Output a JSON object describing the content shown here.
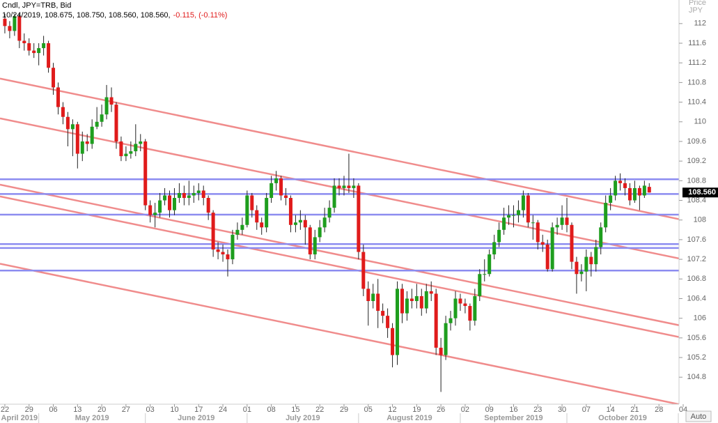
{
  "chart_data": {
    "type": "candlestick",
    "header": "Cndl, JPY=TRB, Bid",
    "info_line": "10/24/2019, 108.675, 108.750, 108.560, 108.560,",
    "change_line": "-0.115, (-0.11%)",
    "y_axis_label": "Price",
    "y_axis_unit": "JPY",
    "auto_button": "Auto",
    "up_color": "#1e9e1e",
    "down_color": "#e01b1b",
    "hline_color": "#8c8cf0",
    "trend_color": "#f08c8c",
    "x": [
      "2019-04-22",
      "2019-04-23",
      "2019-04-24",
      "2019-04-25",
      "2019-04-26",
      "2019-04-29",
      "2019-04-30",
      "2019-05-01",
      "2019-05-02",
      "2019-05-03",
      "2019-05-06",
      "2019-05-07",
      "2019-05-08",
      "2019-05-09",
      "2019-05-10",
      "2019-05-13",
      "2019-05-14",
      "2019-05-15",
      "2019-05-16",
      "2019-05-17",
      "2019-05-20",
      "2019-05-21",
      "2019-05-22",
      "2019-05-23",
      "2019-05-24",
      "2019-05-27",
      "2019-05-28",
      "2019-05-29",
      "2019-05-30",
      "2019-05-31",
      "2019-06-03",
      "2019-06-04",
      "2019-06-05",
      "2019-06-06",
      "2019-06-07",
      "2019-06-10",
      "2019-06-11",
      "2019-06-12",
      "2019-06-13",
      "2019-06-14",
      "2019-06-17",
      "2019-06-18",
      "2019-06-19",
      "2019-06-20",
      "2019-06-21",
      "2019-06-24",
      "2019-06-25",
      "2019-06-26",
      "2019-06-27",
      "2019-06-28",
      "2019-07-01",
      "2019-07-02",
      "2019-07-03",
      "2019-07-04",
      "2019-07-05",
      "2019-07-08",
      "2019-07-09",
      "2019-07-10",
      "2019-07-11",
      "2019-07-12",
      "2019-07-15",
      "2019-07-16",
      "2019-07-17",
      "2019-07-18",
      "2019-07-19",
      "2019-07-22",
      "2019-07-23",
      "2019-07-24",
      "2019-07-25",
      "2019-07-26",
      "2019-07-29",
      "2019-07-30",
      "2019-07-31",
      "2019-08-01",
      "2019-08-02",
      "2019-08-05",
      "2019-08-06",
      "2019-08-07",
      "2019-08-08",
      "2019-08-09",
      "2019-08-12",
      "2019-08-13",
      "2019-08-14",
      "2019-08-15",
      "2019-08-16",
      "2019-08-19",
      "2019-08-20",
      "2019-08-21",
      "2019-08-22",
      "2019-08-23",
      "2019-08-26",
      "2019-08-27",
      "2019-08-28",
      "2019-08-29",
      "2019-08-30",
      "2019-09-02",
      "2019-09-03",
      "2019-09-04",
      "2019-09-05",
      "2019-09-06",
      "2019-09-09",
      "2019-09-10",
      "2019-09-11",
      "2019-09-12",
      "2019-09-13",
      "2019-09-16",
      "2019-09-17",
      "2019-09-18",
      "2019-09-19",
      "2019-09-20",
      "2019-09-23",
      "2019-09-24",
      "2019-09-25",
      "2019-09-26",
      "2019-09-27",
      "2019-09-30",
      "2019-10-01",
      "2019-10-02",
      "2019-10-03",
      "2019-10-04",
      "2019-10-07",
      "2019-10-08",
      "2019-10-09",
      "2019-10-10",
      "2019-10-11",
      "2019-10-14",
      "2019-10-15",
      "2019-10-16",
      "2019-10-17",
      "2019-10-18",
      "2019-10-21",
      "2019-10-22",
      "2019-10-23",
      "2019-10-24"
    ],
    "open": [
      112.1,
      111.95,
      111.85,
      112.15,
      111.65,
      111.6,
      111.45,
      111.4,
      111.5,
      111.6,
      111.1,
      110.7,
      110.3,
      110.1,
      109.85,
      109.95,
      109.35,
      109.6,
      109.55,
      109.9,
      110.0,
      110.15,
      110.5,
      110.35,
      109.6,
      109.3,
      109.35,
      109.4,
      109.55,
      109.6,
      108.3,
      108.1,
      108.15,
      108.4,
      108.5,
      108.2,
      108.45,
      108.55,
      108.45,
      108.5,
      108.55,
      108.6,
      108.45,
      108.15,
      107.4,
      107.35,
      107.3,
      107.2,
      107.7,
      107.8,
      107.9,
      108.5,
      108.2,
      107.95,
      107.85,
      108.45,
      108.75,
      108.85,
      108.5,
      108.45,
      107.9,
      107.95,
      108.0,
      107.85,
      107.3,
      107.65,
      107.85,
      108.05,
      108.25,
      108.7,
      108.65,
      108.7,
      108.65,
      108.7,
      107.35,
      106.6,
      106.35,
      106.5,
      106.15,
      106.05,
      105.8,
      105.25,
      106.6,
      106.1,
      106.4,
      106.35,
      106.45,
      106.2,
      106.55,
      106.5,
      105.4,
      105.25,
      105.9,
      106.0,
      106.4,
      106.3,
      106.25,
      105.95,
      106.45,
      106.9,
      106.9,
      107.3,
      107.55,
      107.8,
      108.05,
      108.1,
      108.1,
      108.2,
      108.5,
      107.95,
      107.95,
      107.55,
      107.5,
      107.0,
      107.85,
      107.9,
      108.05,
      107.9,
      107.15,
      106.9,
      106.95,
      107.25,
      107.1,
      107.45,
      107.85,
      108.35,
      108.5,
      108.8,
      108.75,
      108.65,
      108.4,
      108.65,
      108.5,
      108.675
    ],
    "high": [
      112.2,
      112.05,
      112.2,
      112.2,
      111.8,
      111.7,
      111.6,
      111.6,
      111.75,
      111.65,
      111.2,
      110.8,
      110.4,
      110.2,
      110.05,
      110.0,
      109.8,
      109.75,
      110.05,
      110.3,
      110.35,
      110.75,
      110.7,
      110.4,
      109.7,
      109.5,
      109.6,
      109.95,
      109.75,
      109.65,
      108.4,
      108.35,
      108.55,
      108.65,
      108.6,
      108.65,
      108.75,
      108.7,
      108.8,
      108.7,
      108.75,
      108.7,
      108.5,
      108.2,
      107.55,
      107.5,
      107.4,
      107.8,
      107.95,
      108.05,
      108.6,
      108.55,
      108.3,
      108.05,
      108.55,
      108.9,
      109.0,
      108.9,
      108.65,
      108.5,
      108.1,
      108.2,
      108.1,
      107.9,
      107.8,
      108.0,
      108.25,
      108.4,
      108.85,
      108.85,
      108.9,
      109.35,
      108.85,
      108.75,
      107.5,
      106.75,
      106.7,
      106.8,
      106.3,
      106.2,
      105.9,
      106.75,
      106.7,
      106.55,
      106.6,
      106.7,
      106.6,
      106.7,
      106.75,
      106.6,
      105.6,
      106.05,
      106.15,
      106.55,
      106.5,
      106.4,
      106.3,
      106.6,
      107.0,
      107.2,
      107.4,
      107.7,
      107.95,
      108.25,
      108.3,
      108.3,
      108.4,
      108.6,
      108.55,
      108.1,
      108.0,
      107.7,
      107.6,
      107.95,
      108.05,
      108.3,
      108.45,
      107.95,
      107.25,
      107.1,
      107.4,
      107.35,
      107.6,
      107.95,
      108.5,
      108.65,
      108.9,
      108.95,
      108.85,
      108.75,
      108.8,
      108.7,
      108.8,
      108.75
    ],
    "low": [
      111.8,
      111.7,
      111.75,
      111.5,
      111.45,
      111.35,
      111.3,
      111.15,
      111.35,
      111.0,
      110.55,
      110.15,
      109.95,
      109.5,
      109.3,
      109.05,
      109.2,
      109.4,
      109.45,
      109.85,
      109.9,
      110.05,
      110.2,
      109.45,
      109.2,
      109.2,
      109.25,
      109.3,
      109.4,
      108.2,
      107.95,
      107.85,
      108.05,
      108.3,
      108.05,
      108.1,
      108.35,
      108.3,
      108.3,
      108.35,
      108.4,
      108.3,
      108.0,
      107.25,
      107.2,
      107.15,
      106.85,
      107.1,
      107.6,
      107.7,
      107.85,
      108.05,
      107.8,
      107.7,
      107.75,
      108.35,
      108.6,
      108.4,
      108.3,
      107.75,
      107.75,
      107.8,
      107.5,
      107.2,
      107.2,
      107.55,
      107.75,
      107.95,
      108.15,
      108.5,
      108.5,
      108.55,
      108.45,
      107.2,
      106.45,
      105.85,
      106.2,
      105.8,
      105.9,
      105.6,
      105.0,
      105.05,
      105.9,
      105.95,
      106.2,
      106.2,
      106.05,
      106.1,
      106.35,
      105.25,
      104.5,
      105.15,
      105.75,
      105.85,
      106.15,
      106.1,
      105.75,
      105.85,
      106.35,
      106.75,
      106.85,
      107.2,
      107.45,
      107.7,
      107.9,
      107.85,
      107.95,
      108.05,
      107.85,
      107.6,
      107.4,
      107.35,
      106.95,
      106.95,
      107.7,
      107.8,
      107.75,
      107.0,
      106.5,
      106.75,
      106.55,
      106.85,
      106.95,
      107.3,
      107.75,
      108.2,
      108.4,
      108.6,
      108.5,
      108.3,
      108.35,
      108.2,
      108.45,
      108.56
    ],
    "close": [
      111.95,
      111.85,
      112.15,
      111.65,
      111.6,
      111.45,
      111.4,
      111.5,
      111.6,
      111.1,
      110.7,
      110.3,
      110.1,
      109.85,
      109.95,
      109.35,
      109.6,
      109.55,
      109.9,
      110.0,
      110.15,
      110.5,
      110.35,
      109.6,
      109.3,
      109.35,
      109.4,
      109.55,
      109.6,
      108.3,
      108.1,
      108.15,
      108.4,
      108.5,
      108.2,
      108.45,
      108.55,
      108.45,
      108.5,
      108.55,
      108.6,
      108.45,
      108.15,
      107.4,
      107.35,
      107.3,
      107.2,
      107.7,
      107.8,
      107.9,
      108.5,
      108.2,
      107.95,
      107.85,
      108.45,
      108.75,
      108.85,
      108.5,
      108.45,
      107.9,
      107.95,
      108.0,
      107.85,
      107.3,
      107.65,
      107.85,
      108.05,
      108.25,
      108.7,
      108.65,
      108.7,
      108.65,
      108.7,
      107.35,
      106.6,
      106.35,
      106.5,
      106.15,
      106.05,
      105.8,
      105.25,
      106.6,
      106.1,
      106.4,
      106.35,
      106.45,
      106.2,
      106.55,
      106.5,
      105.4,
      105.25,
      105.9,
      106.0,
      106.4,
      106.3,
      106.25,
      105.95,
      106.45,
      106.9,
      106.9,
      107.3,
      107.55,
      107.8,
      108.05,
      108.1,
      108.1,
      108.2,
      108.5,
      107.95,
      107.95,
      107.55,
      107.5,
      107.0,
      107.85,
      107.9,
      108.05,
      107.9,
      107.15,
      106.9,
      106.95,
      107.25,
      107.1,
      107.45,
      107.85,
      108.35,
      108.5,
      108.8,
      108.75,
      108.65,
      108.4,
      108.65,
      108.5,
      108.7,
      108.56
    ],
    "last_price": {
      "value": 108.56,
      "label": "108.560"
    },
    "hlines": [
      108.83,
      108.53,
      108.11,
      107.51,
      107.43,
      106.97
    ],
    "trendlines": [
      {
        "x": [
          "2019-04-19",
          "2019-11-04"
        ],
        "y": [
          110.88,
          108.0
        ]
      },
      {
        "x": [
          "2019-04-19",
          "2019-11-04"
        ],
        "y": [
          110.07,
          107.2
        ]
      },
      {
        "x": [
          "2019-04-19",
          "2019-11-04"
        ],
        "y": [
          108.72,
          105.84
        ]
      },
      {
        "x": [
          "2019-04-19",
          "2019-11-04"
        ],
        "y": [
          108.48,
          105.6
        ]
      },
      {
        "x": [
          "2019-04-19",
          "2019-11-04"
        ],
        "y": [
          107.11,
          104.23
        ]
      }
    ],
    "xlim": [
      "2019-04-19",
      "2019-11-04"
    ],
    "ylim": [
      104.25,
      112.48
    ],
    "yticks": [
      104.8,
      105.2,
      105.6,
      106,
      106.4,
      106.8,
      107.2,
      107.6,
      108,
      108.4,
      108.8,
      109.2,
      109.6,
      110,
      110.4,
      110.8,
      111.2,
      111.6,
      112
    ],
    "xticks": [
      {
        "value": "2019-04-22",
        "label": "22"
      },
      {
        "value": "2019-04-29",
        "label": "29"
      },
      {
        "value": "2019-05-06",
        "label": "06"
      },
      {
        "value": "2019-05-13",
        "label": "13"
      },
      {
        "value": "2019-05-20",
        "label": "20"
      },
      {
        "value": "2019-05-27",
        "label": "27"
      },
      {
        "value": "2019-06-03",
        "label": "03"
      },
      {
        "value": "2019-06-10",
        "label": "10"
      },
      {
        "value": "2019-06-17",
        "label": "17"
      },
      {
        "value": "2019-06-24",
        "label": "24"
      },
      {
        "value": "2019-07-01",
        "label": "01"
      },
      {
        "value": "2019-07-08",
        "label": "08"
      },
      {
        "value": "2019-07-15",
        "label": "15"
      },
      {
        "value": "2019-07-22",
        "label": "22"
      },
      {
        "value": "2019-07-29",
        "label": "29"
      },
      {
        "value": "2019-08-05",
        "label": "05"
      },
      {
        "value": "2019-08-12",
        "label": "12"
      },
      {
        "value": "2019-08-19",
        "label": "19"
      },
      {
        "value": "2019-08-26",
        "label": "26"
      },
      {
        "value": "2019-09-02",
        "label": "02"
      },
      {
        "value": "2019-09-09",
        "label": "09"
      },
      {
        "value": "2019-09-16",
        "label": "16"
      },
      {
        "value": "2019-09-23",
        "label": "23"
      },
      {
        "value": "2019-09-30",
        "label": "30"
      },
      {
        "value": "2019-10-07",
        "label": "07"
      },
      {
        "value": "2019-10-14",
        "label": "14"
      },
      {
        "value": "2019-10-21",
        "label": "21"
      },
      {
        "value": "2019-10-28",
        "label": "28"
      },
      {
        "value": "2019-11-04",
        "label": "04"
      }
    ],
    "month_ticks": [
      {
        "value": "2019-04-01",
        "label": "April 2019"
      },
      {
        "value": "2019-05-01",
        "label": "May 2019"
      },
      {
        "value": "2019-06-01",
        "label": "June 2019"
      },
      {
        "value": "2019-07-01",
        "label": "July 2019"
      },
      {
        "value": "2019-08-01",
        "label": "August 2019"
      },
      {
        "value": "2019-09-01",
        "label": "September 2019"
      },
      {
        "value": "2019-10-01",
        "label": "October 2019"
      },
      {
        "value": "2019-11-01",
        "label": null
      }
    ]
  }
}
